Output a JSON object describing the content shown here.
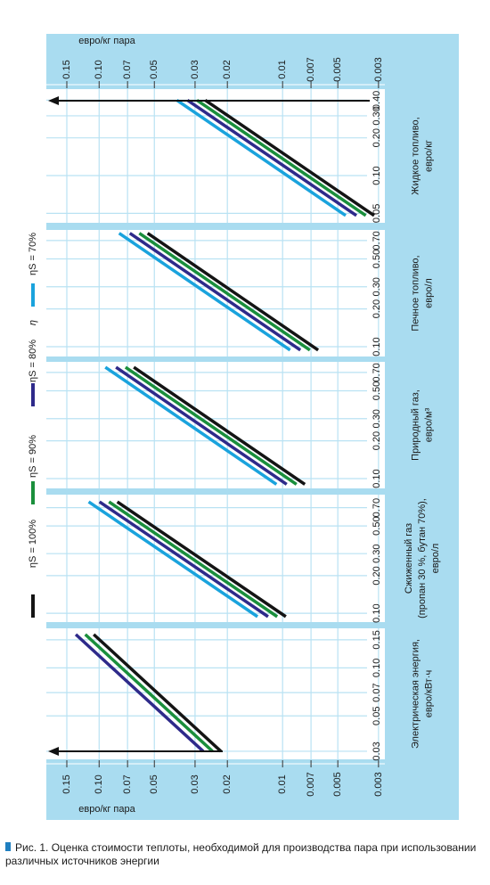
{
  "chart_data": {
    "type": "nomogram",
    "log_scale": true,
    "grid": true,
    "cost_axis": {
      "label": "евро/кг пара",
      "xlim": [
        0.194,
        0.00277
      ],
      "xticks": [
        0.15,
        {
          "value": 0.1,
          "label": "0.10"
        },
        0.07,
        0.05,
        0.03,
        0.02,
        0.01,
        0.007,
        0.005,
        0.003
      ]
    },
    "series": [
      {
        "name": "ηS = 100%",
        "color": "#141414"
      },
      {
        "name": "ηS = 90%",
        "color": "#1a8f3c"
      },
      {
        "name": "ηS = 80%",
        "color": "#2e2a8a"
      },
      {
        "name": "ηS = 70%",
        "color": "#1aa3dd"
      }
    ],
    "legend_note": "η",
    "charts": [
      {
        "type": "line",
        "label": [
          "Жидкое топливо,",
          "евро/кг"
        ],
        "ylim": [
          0.042,
          0.49
        ],
        "yticks": [
          {
            "value": 0.05,
            "label": "0.05"
          },
          {
            "value": 0.1,
            "label": "0.10"
          },
          {
            "value": 0.2,
            "label": "0.20"
          },
          {
            "value": 0.3,
            "label": "0.30"
          },
          {
            "value": 0.4,
            "label": "0.40"
          }
        ],
        "prices": [
          0.048,
          0.4
        ],
        "values": [
          [
            0.00317,
            0.0264
          ],
          [
            0.00352,
            0.0293
          ],
          [
            0.00396,
            0.033
          ],
          [
            0.00453,
            0.0377
          ]
        ]
      },
      {
        "type": "line",
        "label": [
          "Печное топливо,",
          "евро/л"
        ],
        "ylim": [
          0.0836,
          0.85
        ],
        "yticks": [
          {
            "value": 0.1,
            "label": "0.10"
          },
          {
            "value": 0.2,
            "label": "0.20"
          },
          {
            "value": 0.3,
            "label": "0.30"
          },
          {
            "value": 0.5,
            "label": "0.50"
          },
          {
            "value": 0.7,
            "label": "0.70"
          }
        ],
        "prices": [
          0.094,
          0.8
        ],
        "values": [
          [
            0.0064,
            0.0544
          ],
          [
            0.0071,
            0.0604
          ],
          [
            0.008,
            0.068
          ],
          [
            0.0091,
            0.0778
          ]
        ]
      },
      {
        "type": "line",
        "label": [
          "Природный газ,",
          "евро/м³"
        ],
        "ylim": [
          0.0836,
          0.85
        ],
        "yticks": [
          {
            "value": 0.1,
            "label": "0.10"
          },
          {
            "value": 0.2,
            "label": "0.20"
          },
          {
            "value": 0.3,
            "label": "0.30"
          },
          {
            "value": 0.5,
            "label": "0.50"
          },
          {
            "value": 0.7,
            "label": "0.70"
          }
        ],
        "prices": [
          0.09,
          0.77
        ],
        "values": [
          [
            0.00756,
            0.0647
          ],
          [
            0.0084,
            0.0718
          ],
          [
            0.0095,
            0.0809
          ],
          [
            0.0108,
            0.0925
          ]
        ]
      },
      {
        "type": "line",
        "label": [
          "Сжиженный газ",
          "(пропан 30 %, бутан 70%),",
          "евро/л"
        ],
        "ylim": [
          0.085,
          0.89
        ],
        "yticks": [
          {
            "value": 0.1,
            "label": "0.10"
          },
          {
            "value": 0.2,
            "label": "0.20"
          },
          {
            "value": 0.3,
            "label": "0.30"
          },
          {
            "value": 0.5,
            "label": "0.50"
          },
          {
            "value": 0.7,
            "label": "0.70"
          }
        ],
        "prices": [
          0.094,
          0.78
        ],
        "values": [
          [
            0.0096,
            0.0796
          ],
          [
            0.0107,
            0.0884
          ],
          [
            0.012,
            0.0995
          ],
          [
            0.0137,
            0.114
          ]
        ]
      },
      {
        "type": "line",
        "label": [
          "Электрическая энергия,",
          "евро/кВт·ч"
        ],
        "ylim": [
          0.0267,
          0.177
        ],
        "yticks": [
          0.03,
          0.05,
          0.07,
          {
            "value": 0.1,
            "label": "0.10"
          },
          0.15
        ],
        "prices": [
          0.03,
          0.162
        ],
        "values": [
          [
            0.0217,
            0.107
          ],
          [
            0.0241,
            0.119
          ],
          [
            0.0271,
            0.134
          ]
        ]
      }
    ],
    "caption": "Рис. 1. Оценка стоимости теплоты, необходимой для производства пара при использовании различных источников энергии"
  }
}
